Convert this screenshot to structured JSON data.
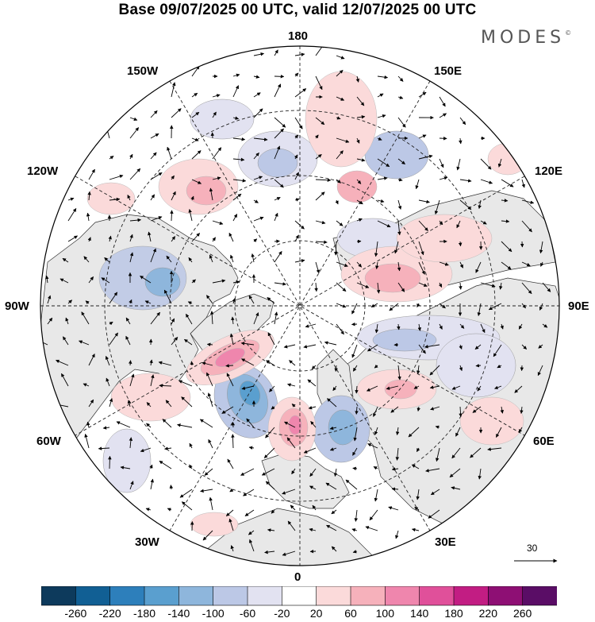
{
  "title": "Base 09/07/2025 00 UTC, valid 12/07/2025 00 UTC",
  "logo": "MODES",
  "logo_mark": "©",
  "longitude_labels": {
    "top": "180",
    "bottom": "0",
    "left": "90W",
    "right": "90E",
    "upper_left_1": "150W",
    "upper_left_2": "120W",
    "upper_right_1": "150E",
    "upper_right_2": "120E",
    "lower_left_1": "60W",
    "lower_left_2": "30W",
    "lower_right_1": "60E",
    "lower_right_2": "30E"
  },
  "vector_scale_label": "30",
  "colorbar": {
    "ticks": [
      "-260",
      "-220",
      "-180",
      "-140",
      "-100",
      "-60",
      "-20",
      "20",
      "60",
      "100",
      "140",
      "180",
      "220",
      "260"
    ],
    "colors": [
      "#0d3a5c",
      "#115f94",
      "#2d7fbb",
      "#5a9fcf",
      "#8eb6dc",
      "#bcc8e6",
      "#e2e2f1",
      "#ffffff",
      "#fbdada",
      "#f6b1bb",
      "#ef86ad",
      "#e0509a",
      "#c21d83",
      "#8e0f74",
      "#5a0d66"
    ]
  },
  "colors": {
    "land": "#e8e8e8",
    "ocean": "#ffffff",
    "coast": "#333333",
    "grid": "#222222"
  }
}
